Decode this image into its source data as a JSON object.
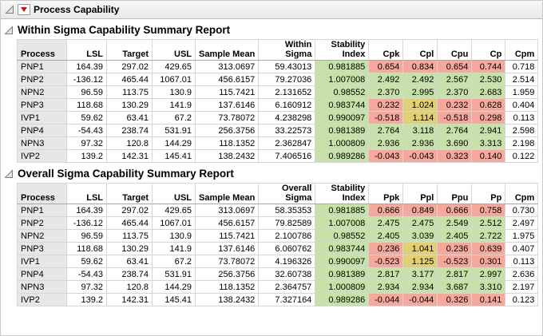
{
  "window": {
    "title": "Process Capability"
  },
  "color_rules": {
    "stability_columns": [
      6
    ],
    "threshold_columns": [
      7,
      8,
      9,
      10
    ],
    "pink_below": 1.0,
    "yellow_below": 1.33,
    "colors": {
      "green": "#c7e2a8",
      "yellow": "#e3cf73",
      "pink": "#f4a99c"
    }
  },
  "sections": [
    {
      "title": "Within Sigma Capability Summary Report",
      "table": {
        "columns": [
          {
            "lines": [
              "Process"
            ],
            "align": "left"
          },
          {
            "lines": [
              "LSL"
            ]
          },
          {
            "lines": [
              "Target"
            ]
          },
          {
            "lines": [
              "USL"
            ]
          },
          {
            "lines": [
              "Sample Mean"
            ]
          },
          {
            "lines": [
              "Within",
              "Sigma"
            ]
          },
          {
            "lines": [
              "Stability",
              "Index"
            ]
          },
          {
            "lines": [
              "Cpk"
            ]
          },
          {
            "lines": [
              "Cpl"
            ]
          },
          {
            "lines": [
              "Cpu"
            ]
          },
          {
            "lines": [
              "Cp"
            ]
          },
          {
            "lines": [
              "Cpm"
            ]
          }
        ],
        "rows": [
          [
            "PNP1",
            "164.39",
            "297.02",
            "429.65",
            "313.0697",
            "59.43013",
            "0.981885",
            "0.654",
            "0.834",
            "0.654",
            "0.744",
            "0.718"
          ],
          [
            "PNP2",
            "-136.12",
            "465.44",
            "1067.01",
            "456.6157",
            "79.27036",
            "1.007008",
            "2.492",
            "2.492",
            "2.567",
            "2.530",
            "2.514"
          ],
          [
            "NPN2",
            "96.59",
            "113.75",
            "130.9",
            "115.7421",
            "2.131652",
            "0.98552",
            "2.370",
            "2.995",
            "2.370",
            "2.683",
            "1.959"
          ],
          [
            "PNP3",
            "118.68",
            "130.29",
            "141.9",
            "137.6146",
            "6.160912",
            "0.983744",
            "0.232",
            "1.024",
            "0.232",
            "0.628",
            "0.404"
          ],
          [
            "IVP1",
            "59.62",
            "63.41",
            "67.2",
            "73.78072",
            "4.238298",
            "0.990097",
            "-0.518",
            "1.114",
            "-0.518",
            "0.298",
            "0.113"
          ],
          [
            "PNP4",
            "-54.43",
            "238.74",
            "531.91",
            "256.3756",
            "33.22573",
            "0.981389",
            "2.764",
            "3.118",
            "2.764",
            "2.941",
            "2.598"
          ],
          [
            "NPN3",
            "97.32",
            "120.8",
            "144.29",
            "118.1352",
            "2.362847",
            "1.000809",
            "2.936",
            "2.936",
            "3.690",
            "3.313",
            "2.198"
          ],
          [
            "IVP2",
            "139.2",
            "142.31",
            "145.41",
            "138.2432",
            "7.406516",
            "0.989286",
            "-0.043",
            "-0.043",
            "0.323",
            "0.140",
            "0.122"
          ]
        ]
      }
    },
    {
      "title": "Overall Sigma Capability Summary Report",
      "table": {
        "columns": [
          {
            "lines": [
              "Process"
            ],
            "align": "left"
          },
          {
            "lines": [
              "LSL"
            ]
          },
          {
            "lines": [
              "Target"
            ]
          },
          {
            "lines": [
              "USL"
            ]
          },
          {
            "lines": [
              "Sample Mean"
            ]
          },
          {
            "lines": [
              "Overall",
              "Sigma"
            ]
          },
          {
            "lines": [
              "Stability",
              "Index"
            ]
          },
          {
            "lines": [
              "Ppk"
            ]
          },
          {
            "lines": [
              "Ppl"
            ]
          },
          {
            "lines": [
              "Ppu"
            ]
          },
          {
            "lines": [
              "Pp"
            ]
          },
          {
            "lines": [
              "Cpm"
            ]
          }
        ],
        "rows": [
          [
            "PNP1",
            "164.39",
            "297.02",
            "429.65",
            "313.0697",
            "58.35353",
            "0.981885",
            "0.666",
            "0.849",
            "0.666",
            "0.758",
            "0.730"
          ],
          [
            "PNP2",
            "-136.12",
            "465.44",
            "1067.01",
            "456.6157",
            "79.82589",
            "1.007008",
            "2.475",
            "2.475",
            "2.549",
            "2.512",
            "2.497"
          ],
          [
            "NPN2",
            "96.59",
            "113.75",
            "130.9",
            "115.7421",
            "2.100786",
            "0.98552",
            "2.405",
            "3.039",
            "2.405",
            "2.722",
            "1.975"
          ],
          [
            "PNP3",
            "118.68",
            "130.29",
            "141.9",
            "137.6146",
            "6.060762",
            "0.983744",
            "0.236",
            "1.041",
            "0.236",
            "0.639",
            "0.407"
          ],
          [
            "IVP1",
            "59.62",
            "63.41",
            "67.2",
            "73.78072",
            "4.196326",
            "0.990097",
            "-0.523",
            "1.125",
            "-0.523",
            "0.301",
            "0.113"
          ],
          [
            "PNP4",
            "-54.43",
            "238.74",
            "531.91",
            "256.3756",
            "32.60738",
            "0.981389",
            "2.817",
            "3.177",
            "2.817",
            "2.997",
            "2.636"
          ],
          [
            "NPN3",
            "97.32",
            "120.8",
            "144.29",
            "118.1352",
            "2.364757",
            "1.000809",
            "2.934",
            "2.934",
            "3.687",
            "3.310",
            "2.197"
          ],
          [
            "IVP2",
            "139.2",
            "142.31",
            "145.41",
            "138.2432",
            "7.327164",
            "0.989286",
            "-0.044",
            "-0.044",
            "0.326",
            "0.141",
            "0.123"
          ]
        ]
      }
    }
  ]
}
